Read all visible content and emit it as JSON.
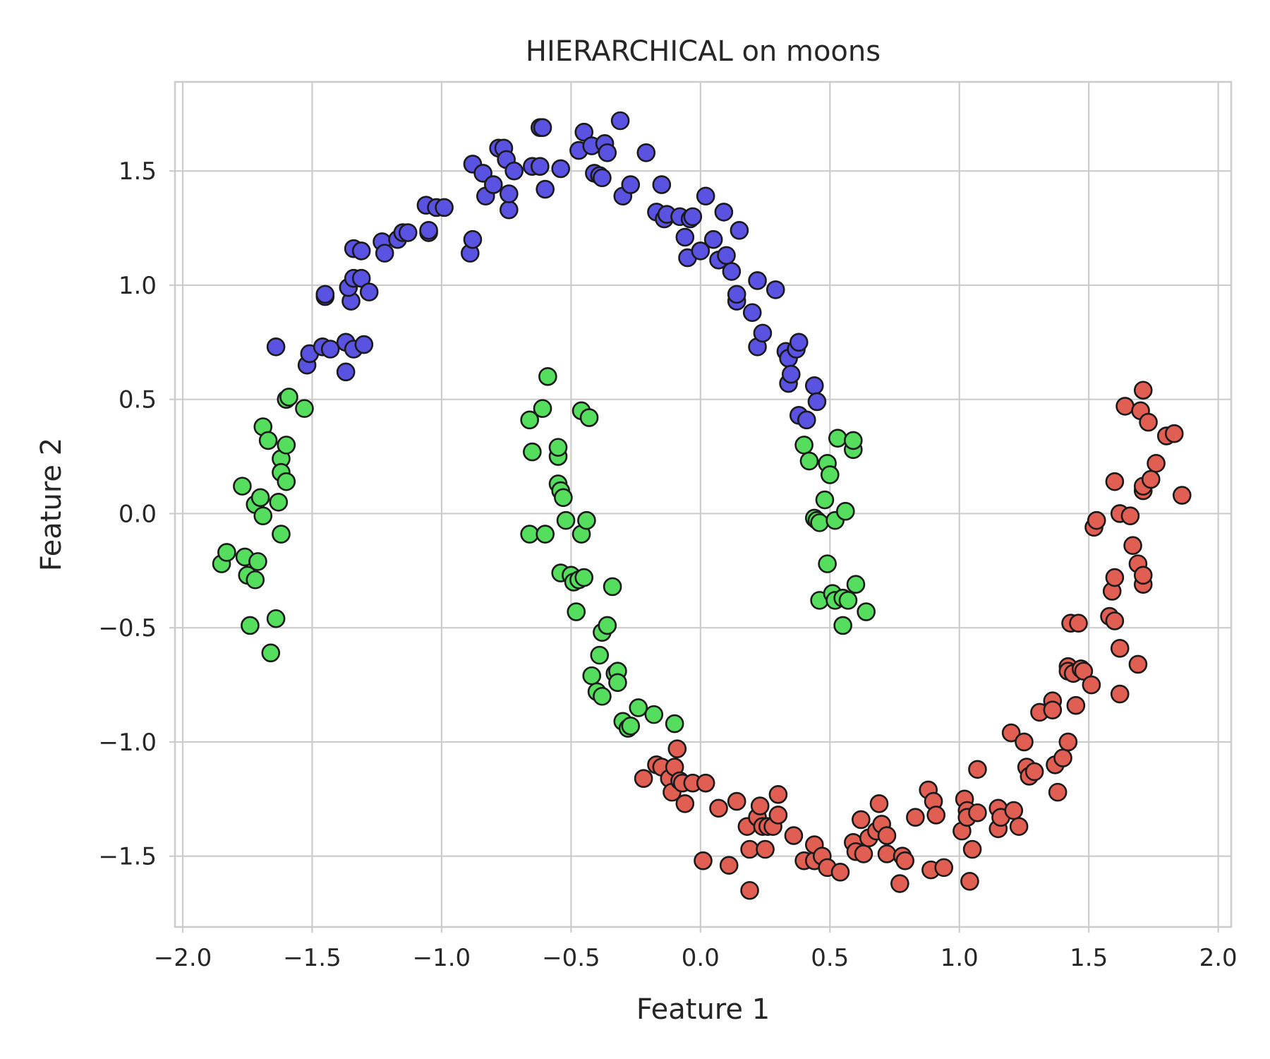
{
  "chart_data": {
    "type": "scatter",
    "title": "HIERARCHICAL on moons",
    "xlabel": "Feature 1",
    "ylabel": "Feature 2",
    "xlim": [
      -2.03,
      2.05
    ],
    "ylim": [
      -1.81,
      1.89
    ],
    "xticks": [
      -2.0,
      -1.5,
      -1.0,
      -0.5,
      0.0,
      0.5,
      1.0,
      1.5,
      2.0
    ],
    "yticks": [
      -1.5,
      -1.0,
      -0.5,
      0.0,
      0.5,
      1.0,
      1.5
    ],
    "xtick_labels": [
      "−2.0",
      "−1.5",
      "−1.0",
      "−0.5",
      "0.0",
      "0.5",
      "1.0",
      "1.5",
      "2.0"
    ],
    "ytick_labels": [
      "−1.5",
      "−1.0",
      "−0.5",
      "0.0",
      "0.5",
      "1.0",
      "1.5"
    ],
    "grid": true,
    "legend": "none",
    "series": [
      {
        "color": "#5a52e0",
        "points": [
          [
            -1.64,
            0.73
          ],
          [
            -1.52,
            0.65
          ],
          [
            -1.51,
            0.7
          ],
          [
            -1.46,
            0.73
          ],
          [
            -1.43,
            0.72
          ],
          [
            -1.37,
            0.75
          ],
          [
            -1.37,
            0.62
          ],
          [
            -1.34,
            0.72
          ],
          [
            -1.3,
            0.74
          ],
          [
            -1.45,
            0.95
          ],
          [
            -1.45,
            0.96
          ],
          [
            -1.35,
            0.93
          ],
          [
            -1.36,
            0.99
          ],
          [
            -1.34,
            1.03
          ],
          [
            -1.31,
            1.03
          ],
          [
            -1.28,
            0.97
          ],
          [
            -1.34,
            1.16
          ],
          [
            -1.31,
            1.15
          ],
          [
            -1.23,
            1.19
          ],
          [
            -1.22,
            1.14
          ],
          [
            -1.17,
            1.2
          ],
          [
            -1.15,
            1.23
          ],
          [
            -1.13,
            1.23
          ],
          [
            -1.05,
            1.23
          ],
          [
            -1.05,
            1.24
          ],
          [
            -1.06,
            1.35
          ],
          [
            -1.02,
            1.34
          ],
          [
            -0.99,
            1.34
          ],
          [
            -0.89,
            1.14
          ],
          [
            -0.88,
            1.2
          ],
          [
            -0.88,
            1.53
          ],
          [
            -0.84,
            1.49
          ],
          [
            -0.83,
            1.39
          ],
          [
            -0.8,
            1.44
          ],
          [
            -0.78,
            1.6
          ],
          [
            -0.76,
            1.6
          ],
          [
            -0.75,
            1.55
          ],
          [
            -0.74,
            1.33
          ],
          [
            -0.74,
            1.4
          ],
          [
            -0.72,
            1.5
          ],
          [
            -0.65,
            1.52
          ],
          [
            -0.62,
            1.52
          ],
          [
            -0.62,
            1.69
          ],
          [
            -0.61,
            1.69
          ],
          [
            -0.6,
            1.42
          ],
          [
            -0.54,
            1.51
          ],
          [
            -0.47,
            1.59
          ],
          [
            -0.45,
            1.67
          ],
          [
            -0.42,
            1.61
          ],
          [
            -0.41,
            1.49
          ],
          [
            -0.39,
            1.48
          ],
          [
            -0.38,
            1.47
          ],
          [
            -0.37,
            1.62
          ],
          [
            -0.36,
            1.58
          ],
          [
            -0.31,
            1.72
          ],
          [
            -0.3,
            1.39
          ],
          [
            -0.27,
            1.44
          ],
          [
            -0.21,
            1.58
          ],
          [
            -0.17,
            1.32
          ],
          [
            -0.15,
            1.44
          ],
          [
            -0.14,
            1.29
          ],
          [
            -0.13,
            1.31
          ],
          [
            -0.08,
            1.3
          ],
          [
            -0.06,
            1.21
          ],
          [
            -0.05,
            1.12
          ],
          [
            -0.04,
            1.29
          ],
          [
            -0.03,
            1.3
          ],
          [
            0.0,
            1.15
          ],
          [
            0.02,
            1.39
          ],
          [
            0.05,
            1.2
          ],
          [
            0.07,
            1.11
          ],
          [
            0.09,
            1.32
          ],
          [
            0.1,
            1.13
          ],
          [
            0.12,
            1.06
          ],
          [
            0.14,
            0.93
          ],
          [
            0.14,
            0.96
          ],
          [
            0.15,
            1.24
          ],
          [
            0.2,
            0.88
          ],
          [
            0.22,
            0.73
          ],
          [
            0.22,
            1.02
          ],
          [
            0.24,
            0.79
          ],
          [
            0.29,
            0.98
          ],
          [
            0.33,
            0.71
          ],
          [
            0.34,
            0.57
          ],
          [
            0.34,
            0.68
          ],
          [
            0.35,
            0.61
          ],
          [
            0.37,
            0.72
          ],
          [
            0.38,
            0.43
          ],
          [
            0.38,
            0.75
          ],
          [
            0.41,
            0.41
          ],
          [
            0.44,
            0.56
          ],
          [
            0.45,
            0.49
          ]
        ]
      },
      {
        "color": "#55dd5e",
        "points": [
          [
            -1.85,
            -0.22
          ],
          [
            -1.83,
            -0.17
          ],
          [
            -1.77,
            0.12
          ],
          [
            -1.76,
            -0.19
          ],
          [
            -1.75,
            -0.27
          ],
          [
            -1.74,
            -0.49
          ],
          [
            -1.72,
            0.04
          ],
          [
            -1.72,
            -0.29
          ],
          [
            -1.71,
            -0.21
          ],
          [
            -1.7,
            0.07
          ],
          [
            -1.69,
            0.38
          ],
          [
            -1.69,
            -0.01
          ],
          [
            -1.67,
            0.32
          ],
          [
            -1.66,
            -0.61
          ],
          [
            -1.64,
            -0.46
          ],
          [
            -1.63,
            0.05
          ],
          [
            -1.62,
            0.24
          ],
          [
            -1.62,
            0.18
          ],
          [
            -1.62,
            -0.09
          ],
          [
            -1.6,
            0.3
          ],
          [
            -1.6,
            0.14
          ],
          [
            -1.6,
            0.5
          ],
          [
            -1.59,
            0.51
          ],
          [
            -1.53,
            0.46
          ],
          [
            -0.66,
            0.41
          ],
          [
            -0.66,
            -0.09
          ],
          [
            -0.65,
            0.27
          ],
          [
            -0.61,
            0.46
          ],
          [
            -0.6,
            -0.09
          ],
          [
            -0.59,
            0.6
          ],
          [
            -0.55,
            0.13
          ],
          [
            -0.55,
            0.25
          ],
          [
            -0.55,
            0.29
          ],
          [
            -0.54,
            -0.26
          ],
          [
            -0.54,
            0.1
          ],
          [
            -0.53,
            0.07
          ],
          [
            -0.52,
            -0.03
          ],
          [
            -0.5,
            -0.27
          ],
          [
            -0.49,
            -0.3
          ],
          [
            -0.48,
            -0.43
          ],
          [
            -0.47,
            -0.29
          ],
          [
            -0.46,
            0.45
          ],
          [
            -0.46,
            -0.09
          ],
          [
            -0.45,
            -0.28
          ],
          [
            -0.43,
            0.42
          ],
          [
            -0.44,
            -0.03
          ],
          [
            -0.42,
            -0.71
          ],
          [
            -0.4,
            -0.78
          ],
          [
            -0.39,
            -0.62
          ],
          [
            -0.38,
            -0.52
          ],
          [
            -0.38,
            -0.8
          ],
          [
            -0.36,
            -0.49
          ],
          [
            -0.34,
            -0.32
          ],
          [
            -0.33,
            -0.7
          ],
          [
            -0.32,
            -0.69
          ],
          [
            -0.32,
            -0.74
          ],
          [
            -0.3,
            -0.91
          ],
          [
            -0.28,
            -0.94
          ],
          [
            -0.27,
            -0.93
          ],
          [
            -0.24,
            -0.85
          ],
          [
            -0.18,
            -0.88
          ],
          [
            -0.1,
            -0.92
          ],
          [
            0.4,
            0.3
          ],
          [
            0.42,
            0.23
          ],
          [
            0.44,
            -0.02
          ],
          [
            0.45,
            -0.03
          ],
          [
            0.46,
            -0.04
          ],
          [
            0.46,
            -0.38
          ],
          [
            0.48,
            0.06
          ],
          [
            0.49,
            0.22
          ],
          [
            0.49,
            -0.22
          ],
          [
            0.5,
            0.17
          ],
          [
            0.51,
            -0.35
          ],
          [
            0.52,
            -0.03
          ],
          [
            0.52,
            -0.38
          ],
          [
            0.53,
            0.33
          ],
          [
            0.55,
            -0.37
          ],
          [
            0.55,
            -0.49
          ],
          [
            0.56,
            0.01
          ],
          [
            0.57,
            -0.38
          ],
          [
            0.59,
            0.28
          ],
          [
            0.59,
            0.32
          ],
          [
            0.6,
            -0.31
          ],
          [
            0.64,
            -0.43
          ]
        ]
      },
      {
        "color": "#e05e52",
        "points": [
          [
            -0.22,
            -1.16
          ],
          [
            -0.17,
            -1.1
          ],
          [
            -0.15,
            -1.11
          ],
          [
            -0.12,
            -1.16
          ],
          [
            -0.11,
            -1.22
          ],
          [
            -0.1,
            -1.11
          ],
          [
            -0.09,
            -1.03
          ],
          [
            -0.08,
            -1.17
          ],
          [
            -0.07,
            -1.18
          ],
          [
            -0.06,
            -1.27
          ],
          [
            -0.03,
            -1.18
          ],
          [
            0.01,
            -1.52
          ],
          [
            0.02,
            -1.18
          ],
          [
            0.07,
            -1.29
          ],
          [
            0.11,
            -1.54
          ],
          [
            0.14,
            -1.26
          ],
          [
            0.18,
            -1.37
          ],
          [
            0.19,
            -1.47
          ],
          [
            0.19,
            -1.65
          ],
          [
            0.22,
            -1.33
          ],
          [
            0.23,
            -1.28
          ],
          [
            0.24,
            -1.37
          ],
          [
            0.25,
            -1.47
          ],
          [
            0.26,
            -1.37
          ],
          [
            0.28,
            -1.37
          ],
          [
            0.3,
            -1.23
          ],
          [
            0.3,
            -1.32
          ],
          [
            0.36,
            -1.41
          ],
          [
            0.4,
            -1.52
          ],
          [
            0.44,
            -1.52
          ],
          [
            0.44,
            -1.45
          ],
          [
            0.47,
            -1.5
          ],
          [
            0.49,
            -1.55
          ],
          [
            0.54,
            -1.57
          ],
          [
            0.59,
            -1.44
          ],
          [
            0.6,
            -1.48
          ],
          [
            0.62,
            -1.34
          ],
          [
            0.63,
            -1.49
          ],
          [
            0.65,
            -1.42
          ],
          [
            0.68,
            -1.39
          ],
          [
            0.69,
            -1.27
          ],
          [
            0.7,
            -1.36
          ],
          [
            0.72,
            -1.41
          ],
          [
            0.72,
            -1.49
          ],
          [
            0.77,
            -1.62
          ],
          [
            0.78,
            -1.5
          ],
          [
            0.79,
            -1.52
          ],
          [
            0.83,
            -1.33
          ],
          [
            0.88,
            -1.21
          ],
          [
            0.89,
            -1.56
          ],
          [
            0.9,
            -1.26
          ],
          [
            0.91,
            -1.32
          ],
          [
            0.94,
            -1.55
          ],
          [
            1.01,
            -1.39
          ],
          [
            1.02,
            -1.25
          ],
          [
            1.03,
            -1.3
          ],
          [
            1.03,
            -1.33
          ],
          [
            1.04,
            -1.61
          ],
          [
            1.05,
            -1.47
          ],
          [
            1.07,
            -1.31
          ],
          [
            1.07,
            -1.12
          ],
          [
            1.15,
            -1.38
          ],
          [
            1.15,
            -1.29
          ],
          [
            1.16,
            -1.33
          ],
          [
            1.2,
            -0.96
          ],
          [
            1.21,
            -1.3
          ],
          [
            1.23,
            -1.37
          ],
          [
            1.25,
            -1.0
          ],
          [
            1.26,
            -1.11
          ],
          [
            1.27,
            -1.15
          ],
          [
            1.29,
            -1.13
          ],
          [
            1.31,
            -0.87
          ],
          [
            1.36,
            -0.82
          ],
          [
            1.36,
            -0.86
          ],
          [
            1.37,
            -1.1
          ],
          [
            1.38,
            -1.22
          ],
          [
            1.4,
            -1.07
          ],
          [
            1.42,
            -1.0
          ],
          [
            1.42,
            -0.67
          ],
          [
            1.42,
            -0.69
          ],
          [
            1.43,
            -0.48
          ],
          [
            1.44,
            -0.7
          ],
          [
            1.45,
            -0.84
          ],
          [
            1.46,
            -0.48
          ],
          [
            1.47,
            -0.68
          ],
          [
            1.48,
            -0.69
          ],
          [
            1.51,
            -0.75
          ],
          [
            1.52,
            -0.06
          ],
          [
            1.53,
            -0.03
          ],
          [
            1.58,
            -0.45
          ],
          [
            1.59,
            -0.34
          ],
          [
            1.6,
            -0.28
          ],
          [
            1.6,
            -0.47
          ],
          [
            1.6,
            0.14
          ],
          [
            1.62,
            -0.59
          ],
          [
            1.62,
            0.0
          ],
          [
            1.64,
            0.47
          ],
          [
            1.66,
            -0.01
          ],
          [
            1.67,
            -0.14
          ],
          [
            1.69,
            -0.22
          ],
          [
            1.69,
            -0.66
          ],
          [
            1.7,
            0.45
          ],
          [
            1.71,
            0.54
          ],
          [
            1.71,
            0.1
          ],
          [
            1.71,
            0.12
          ],
          [
            1.71,
            -0.31
          ],
          [
            1.71,
            -0.27
          ],
          [
            1.73,
            0.4
          ],
          [
            1.74,
            0.15
          ],
          [
            1.76,
            0.22
          ],
          [
            1.8,
            0.34
          ],
          [
            1.83,
            0.35
          ],
          [
            1.86,
            0.08
          ],
          [
            1.62,
            -0.79
          ]
        ]
      }
    ]
  }
}
